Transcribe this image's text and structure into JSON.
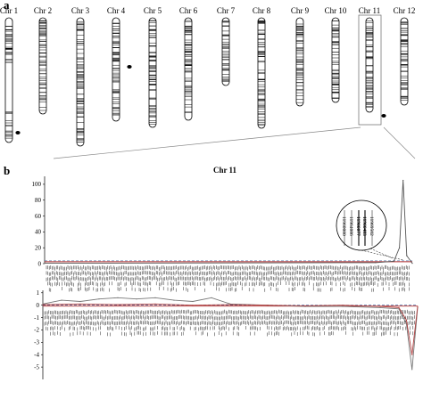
{
  "panel_a": {
    "label": "a",
    "chromosomes": [
      {
        "label": "Chr 1",
        "dot": true,
        "hollow_upper": true
      },
      {
        "label": "Chr 2"
      },
      {
        "label": "Chr 3"
      },
      {
        "label": "Chr 4",
        "dot": true
      },
      {
        "label": "Chr 5"
      },
      {
        "label": "Chr 6"
      },
      {
        "label": "Chr 7"
      },
      {
        "label": "Chr 8"
      },
      {
        "label": "Chr 9"
      },
      {
        "label": "Chr 10"
      },
      {
        "label": "Chr 11",
        "dot": true,
        "boxed": true
      },
      {
        "label": "Chr 12"
      }
    ]
  },
  "panel_b": {
    "label": "b",
    "title": "Chr  11",
    "zoom_markers": [
      "11960080",
      "11964086",
      "11966077",
      "11966483",
      "11969502"
    ],
    "marker_label_sample": "RM5349"
  },
  "chart_data": [
    {
      "type": "line",
      "title": "Chr  11",
      "xlabel": "",
      "ylabel": "",
      "ylim": [
        0,
        110
      ],
      "yticks": [
        0,
        20,
        40,
        60,
        80,
        100
      ],
      "threshold": 3.5,
      "series": [
        {
          "name": "",
          "color": "#555555",
          "x": [
            0,
            0.9,
            0.95,
            0.965,
            0.975,
            0.985,
            1.0
          ],
          "values": [
            0.5,
            1.2,
            3,
            20,
            105,
            10,
            0.5
          ]
        }
      ]
    },
    {
      "type": "line",
      "xlabel": "",
      "ylabel": "",
      "ylim": [
        -6,
        1.2
      ],
      "yticks": [
        1,
        0,
        -1,
        -2,
        -3,
        -4,
        -5
      ],
      "baseline": 0,
      "series": [
        {
          "name": "",
          "color": "#777777",
          "x": [
            0,
            0.05,
            0.1,
            0.15,
            0.2,
            0.25,
            0.3,
            0.35,
            0.4,
            0.45,
            0.5,
            0.6,
            0.7,
            0.8,
            0.9,
            0.95,
            0.97,
            0.985,
            1.0
          ],
          "values": [
            0.1,
            0.4,
            0.3,
            0.5,
            0.6,
            0.5,
            0.6,
            0.4,
            0.3,
            0.6,
            0.1,
            0.0,
            -0.1,
            -0.1,
            -0.2,
            -0.3,
            -1.5,
            -5.2,
            -0.2
          ]
        },
        {
          "name": "",
          "color": "#b04040",
          "x": [
            0,
            0.1,
            0.2,
            0.3,
            0.4,
            0.5,
            0.6,
            0.7,
            0.8,
            0.9,
            0.95,
            0.97,
            0.985,
            1.0
          ],
          "values": [
            0.05,
            0.1,
            0.05,
            0.1,
            0.0,
            0.05,
            0.0,
            -0.05,
            0.0,
            -0.1,
            -0.2,
            -1.2,
            -4.0,
            -0.1
          ]
        }
      ]
    }
  ]
}
